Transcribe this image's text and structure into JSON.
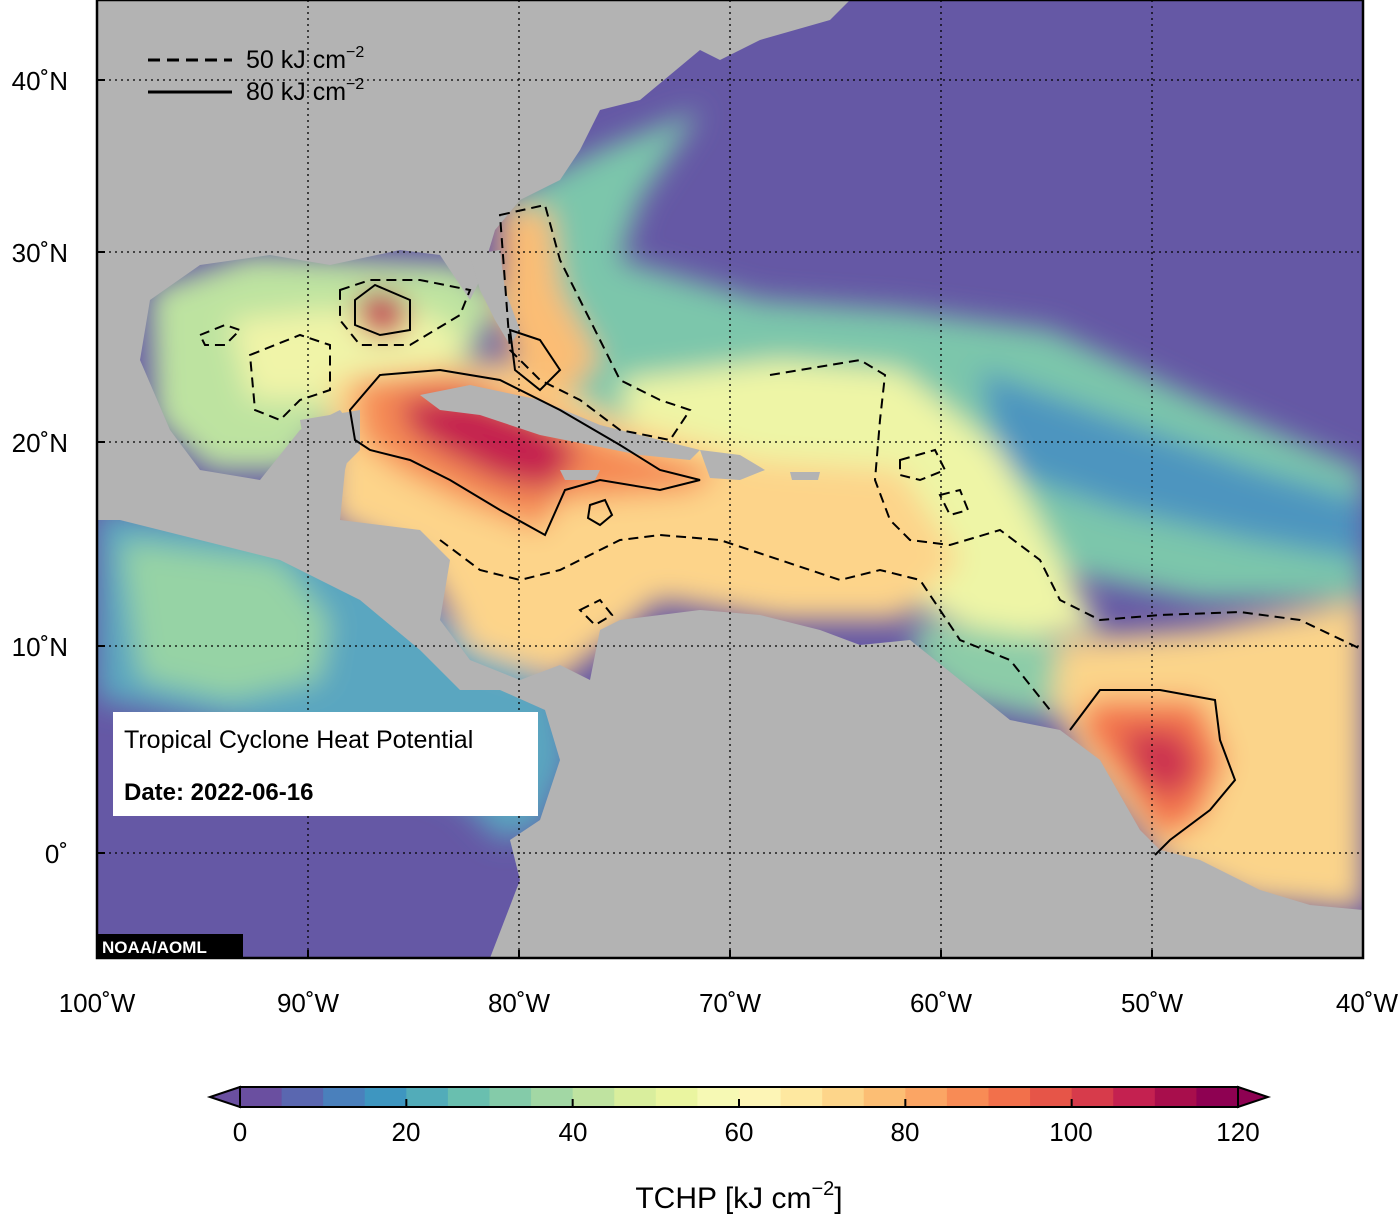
{
  "map": {
    "title": "Tropical Cyclone Heat Potential",
    "date_label": "Date: 2022-06-16",
    "credit": "NOAA/AOML",
    "extent": {
      "lon_min": -100,
      "lon_max": -40,
      "lat_min": -5,
      "lat_max": 45
    },
    "ocean_color": "#6558a5",
    "land_color": "#b3b3b3"
  },
  "legend": {
    "items": [
      {
        "value": "50",
        "unit": "kJ cm",
        "exp": "−2",
        "style": "dashed"
      },
      {
        "value": "80",
        "unit": "kJ cm",
        "exp": "−2",
        "style": "solid"
      }
    ]
  },
  "axes": {
    "lon_ticks": [
      "100˚W",
      "90˚W",
      "80˚W",
      "70˚W",
      "60˚W",
      "50˚W",
      "40˚W"
    ],
    "lat_ticks": [
      "40˚N",
      "30˚N",
      "20˚N",
      "10˚N",
      "0˚"
    ]
  },
  "colorbar": {
    "title_main": "TCHP [kJ cm",
    "title_exp": "−2",
    "title_end": "]",
    "ticks": [
      "0",
      "20",
      "40",
      "60",
      "80",
      "100",
      "120"
    ],
    "colors": [
      "#6a4fa0",
      "#5a67b0",
      "#4a80bc",
      "#3e96c0",
      "#52acb9",
      "#69bfaf",
      "#84cba9",
      "#a2d7a4",
      "#bfe3a0",
      "#d9ee9d",
      "#eaf5a0",
      "#f6f9b4",
      "#fdf5b6",
      "#fee8a0",
      "#fdd58a",
      "#fcbe74",
      "#fba564",
      "#f88b55",
      "#f2704b",
      "#e65548",
      "#d73b4b",
      "#c42150",
      "#a80e4c",
      "#8e0152"
    ]
  }
}
